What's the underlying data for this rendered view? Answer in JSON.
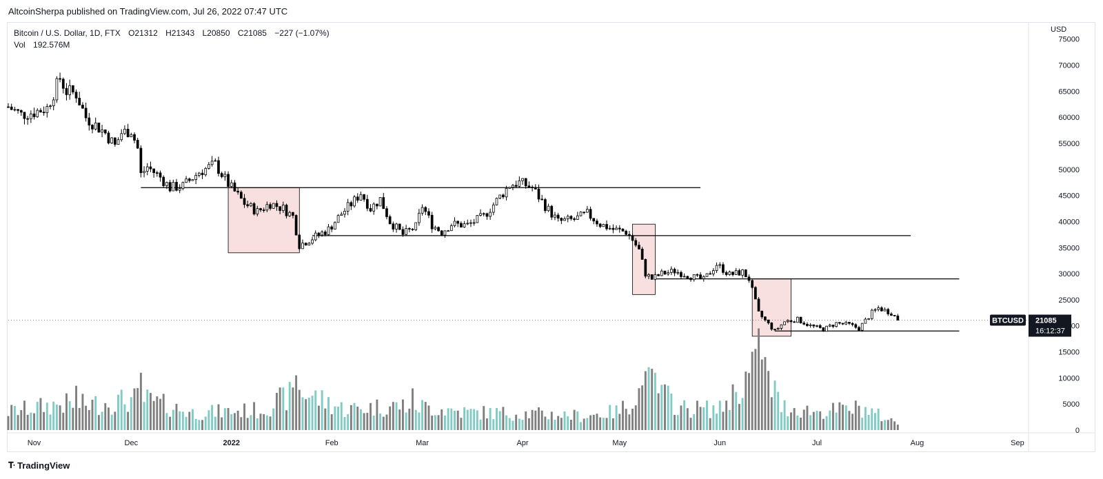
{
  "publisher": {
    "text": "AltcoinSherpa published on TradingView.com, Jul 26, 2022 07:47 UTC"
  },
  "legend": {
    "symbol": "Bitcoin / U.S. Dollar, 1D, FTX",
    "open": "O21312",
    "high": "H21343",
    "low": "L20850",
    "close": "C21085",
    "change": "−227 (−1.07%)",
    "vol_label": "Vol",
    "vol_value": "192.576M"
  },
  "axis": {
    "currency": "USD",
    "price_last": "21085",
    "countdown": "16:12:37",
    "symbol_badge": "BTCUSD"
  },
  "footer": {
    "logo_text": "TradingView",
    "logo_icon": "tradingview-logo-icon"
  },
  "colors": {
    "up_body": "#ffffff",
    "down_body": "#000000",
    "wick": "#000000",
    "vol_up": "#80cbc4",
    "vol_down": "#7f7f7f",
    "box_fill": "#f6d6d6",
    "grid": "#f0f3fa"
  },
  "chart_data": {
    "type": "candlestick",
    "title": "Bitcoin / U.S. Dollar, 1D, FTX",
    "x_range": [
      "2021-10-24",
      "2022-09-04"
    ],
    "ylim": [
      0,
      78000
    ],
    "x_ticks": [
      {
        "date": "2021-11-01",
        "label": "Nov"
      },
      {
        "date": "2021-12-01",
        "label": "Dec"
      },
      {
        "date": "2022-01-01",
        "label": "2022"
      },
      {
        "date": "2022-02-01",
        "label": "Feb"
      },
      {
        "date": "2022-03-01",
        "label": "Mar"
      },
      {
        "date": "2022-04-01",
        "label": "Apr"
      },
      {
        "date": "2022-05-01",
        "label": "May"
      },
      {
        "date": "2022-06-01",
        "label": "Jun"
      },
      {
        "date": "2022-07-01",
        "label": "Jul"
      },
      {
        "date": "2022-08-01",
        "label": "Aug"
      },
      {
        "date": "2022-09-01",
        "label": "Sep"
      }
    ],
    "y_ticks": [
      75000,
      70000,
      65000,
      60000,
      55000,
      50000,
      45000,
      40000,
      35000,
      30000,
      25000,
      20000,
      15000,
      10000,
      5000,
      0
    ],
    "price_path": [
      [
        "2021-10-24",
        62000
      ],
      [
        "2021-10-28",
        60500
      ],
      [
        "2021-11-01",
        61000
      ],
      [
        "2021-11-05",
        61800
      ],
      [
        "2021-11-09",
        67500
      ],
      [
        "2021-11-11",
        65000
      ],
      [
        "2021-11-14",
        64500
      ],
      [
        "2021-11-17",
        60000
      ],
      [
        "2021-11-20",
        58500
      ],
      [
        "2021-11-23",
        57000
      ],
      [
        "2021-11-26",
        54500
      ],
      [
        "2021-11-28",
        57000
      ],
      [
        "2021-12-01",
        57500
      ],
      [
        "2021-12-03",
        54000
      ],
      [
        "2021-12-04",
        49000
      ],
      [
        "2021-12-06",
        50500
      ],
      [
        "2021-12-10",
        48500
      ],
      [
        "2021-12-13",
        46500
      ],
      [
        "2021-12-17",
        46800
      ],
      [
        "2021-12-22",
        49500
      ],
      [
        "2021-12-27",
        51000
      ],
      [
        "2021-12-31",
        47200
      ],
      [
        "2022-01-05",
        43500
      ],
      [
        "2022-01-09",
        41900
      ],
      [
        "2022-01-13",
        43500
      ],
      [
        "2022-01-17",
        42500
      ],
      [
        "2022-01-20",
        41000
      ],
      [
        "2022-01-22",
        35500
      ],
      [
        "2022-01-26",
        36800
      ],
      [
        "2022-01-31",
        38500
      ],
      [
        "2022-02-04",
        41500
      ],
      [
        "2022-02-08",
        44000
      ],
      [
        "2022-02-10",
        45500
      ],
      [
        "2022-02-13",
        42500
      ],
      [
        "2022-02-16",
        44300
      ],
      [
        "2022-02-19",
        40000
      ],
      [
        "2022-02-23",
        37500
      ],
      [
        "2022-02-27",
        39000
      ],
      [
        "2022-03-01",
        43000
      ],
      [
        "2022-03-04",
        39400
      ],
      [
        "2022-03-07",
        38000
      ],
      [
        "2022-03-10",
        39500
      ],
      [
        "2022-03-15",
        39300
      ],
      [
        "2022-03-20",
        41000
      ],
      [
        "2022-03-24",
        44000
      ],
      [
        "2022-03-28",
        47000
      ],
      [
        "2022-03-31",
        47500
      ],
      [
        "2022-04-04",
        46500
      ],
      [
        "2022-04-08",
        43000
      ],
      [
        "2022-04-12",
        40000
      ],
      [
        "2022-04-17",
        40400
      ],
      [
        "2022-04-21",
        41500
      ],
      [
        "2022-04-25",
        39500
      ],
      [
        "2022-04-29",
        38500
      ],
      [
        "2022-05-03",
        38000
      ],
      [
        "2022-05-05",
        36500
      ],
      [
        "2022-05-07",
        34500
      ],
      [
        "2022-05-09",
        30000
      ],
      [
        "2022-05-11",
        29000
      ],
      [
        "2022-05-14",
        30000
      ],
      [
        "2022-05-18",
        30500
      ],
      [
        "2022-05-23",
        29500
      ],
      [
        "2022-05-27",
        28800
      ],
      [
        "2022-05-31",
        31800
      ],
      [
        "2022-06-04",
        29800
      ],
      [
        "2022-06-08",
        30300
      ],
      [
        "2022-06-10",
        29000
      ],
      [
        "2022-06-13",
        22400
      ],
      [
        "2022-06-15",
        21000
      ],
      [
        "2022-06-18",
        19000
      ],
      [
        "2022-06-21",
        20800
      ],
      [
        "2022-06-25",
        21200
      ],
      [
        "2022-06-29",
        20000
      ],
      [
        "2022-07-03",
        19300
      ],
      [
        "2022-07-07",
        20500
      ],
      [
        "2022-07-11",
        20200
      ],
      [
        "2022-07-14",
        19500
      ],
      [
        "2022-07-18",
        22500
      ],
      [
        "2022-07-20",
        23400
      ],
      [
        "2022-07-24",
        22500
      ],
      [
        "2022-07-26",
        21085
      ]
    ],
    "volume_path": [
      [
        "2021-10-24",
        3500
      ],
      [
        "2021-11-09",
        5000
      ],
      [
        "2021-11-17",
        4800
      ],
      [
        "2021-12-04",
        6000
      ],
      [
        "2021-12-20",
        3300
      ],
      [
        "2022-01-10",
        3800
      ],
      [
        "2022-01-22",
        7500
      ],
      [
        "2022-02-05",
        4000
      ],
      [
        "2022-02-25",
        4800
      ],
      [
        "2022-03-15",
        3400
      ],
      [
        "2022-04-01",
        3200
      ],
      [
        "2022-04-20",
        2700
      ],
      [
        "2022-05-01",
        3600
      ],
      [
        "2022-05-10",
        9000
      ],
      [
        "2022-05-20",
        4200
      ],
      [
        "2022-06-01",
        4000
      ],
      [
        "2022-06-13",
        12500
      ],
      [
        "2022-06-20",
        4500
      ],
      [
        "2022-07-01",
        3500
      ],
      [
        "2022-07-15",
        4200
      ],
      [
        "2022-07-26",
        1300
      ]
    ],
    "volume_spikes": [
      [
        "2021-11-14",
        8500
      ],
      [
        "2021-12-04",
        11000
      ],
      [
        "2022-01-21",
        10500
      ],
      [
        "2022-02-26",
        8000
      ],
      [
        "2022-05-09",
        11300
      ],
      [
        "2022-05-12",
        11000
      ],
      [
        "2022-06-13",
        19500
      ],
      [
        "2022-06-15",
        14000
      ],
      [
        "2022-06-18",
        9500
      ]
    ],
    "horizontal_levels": [
      {
        "price": 46500,
        "from": "2021-12-04",
        "to": "2022-05-26"
      },
      {
        "price": 37300,
        "from": "2022-01-26",
        "to": "2022-07-30"
      },
      {
        "price": 29000,
        "from": "2022-05-12",
        "to": "2022-08-14"
      },
      {
        "price": 19000,
        "from": "2022-06-18",
        "to": "2022-08-14"
      }
    ],
    "highlight_boxes": [
      {
        "from": "2021-12-31",
        "to": "2022-01-22",
        "price_high": 46500,
        "price_low": 34000
      },
      {
        "from": "2022-05-05",
        "to": "2022-05-12",
        "price_high": 39500,
        "price_low": 26000
      },
      {
        "from": "2022-06-11",
        "to": "2022-06-23",
        "price_high": 29000,
        "price_low": 18000
      }
    ],
    "last_price": 21085
  }
}
